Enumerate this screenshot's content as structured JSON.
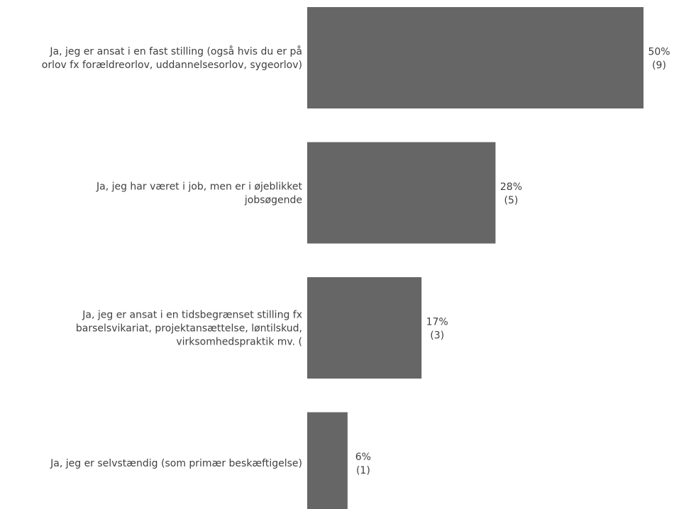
{
  "chart_data": {
    "type": "bar",
    "orientation": "horizontal",
    "categories": [
      [
        "Ja, jeg er ansat i en fast stilling (også hvis du er på",
        "orlov fx forældreorlov, uddannelsesorlov, sygeorlov)"
      ],
      [
        "Ja, jeg har været i job, men er i øjeblikket",
        "jobsøgende"
      ],
      [
        "Ja, jeg er ansat i en tidsbegrænset stilling fx",
        "barselsvikariat, projektansættelse, løntilskud,",
        "virksomhedspraktik mv. ("
      ],
      [
        "Ja, jeg er selvstændig (som primær beskæftigelse)"
      ]
    ],
    "values": [
      50,
      28,
      17,
      6
    ],
    "counts": [
      "(9)",
      "(5)",
      "(3)",
      "(1)"
    ],
    "value_labels": [
      "50%",
      "28%",
      "17%",
      "6%"
    ],
    "xlim": [
      0,
      50
    ],
    "bar_color": "#666666",
    "text_color": "#404040",
    "grid": false,
    "legend": "none"
  }
}
